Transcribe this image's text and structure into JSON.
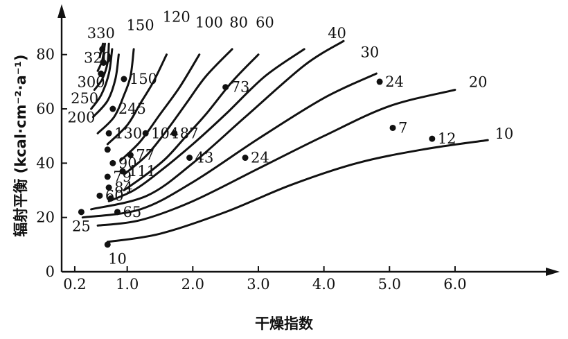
{
  "chart_data": {
    "type": "line",
    "xlabel": "干燥指数",
    "ylabel": "辐射平衡 (kcal·cm⁻²·a⁻¹)",
    "xlim": [
      0,
      7.3
    ],
    "ylim": [
      0,
      95
    ],
    "x_ticks": [
      {
        "v": 0.2,
        "label": "0.2"
      },
      {
        "v": 1.0,
        "label": "1.0"
      },
      {
        "v": 2.0,
        "label": "2.0"
      },
      {
        "v": 3.0,
        "label": "3.0"
      },
      {
        "v": 4.0,
        "label": "4.0"
      },
      {
        "v": 5.0,
        "label": "5.0"
      },
      {
        "v": 6.0,
        "label": "6.0"
      }
    ],
    "y_ticks": [
      {
        "v": 0,
        "label": "0"
      },
      {
        "v": 20,
        "label": "20"
      },
      {
        "v": 40,
        "label": "40"
      },
      {
        "v": 60,
        "label": "60"
      },
      {
        "v": 80,
        "label": "80"
      }
    ],
    "isolines": [
      {
        "label": "10",
        "points": [
          [
            0.7,
            11
          ],
          [
            1.5,
            14
          ],
          [
            2.5,
            22
          ],
          [
            3.5,
            32
          ],
          [
            4.5,
            40
          ],
          [
            5.5,
            45
          ],
          [
            6.5,
            48.5
          ]
        ]
      },
      {
        "label": "20",
        "points": [
          [
            0.55,
            17
          ],
          [
            1.2,
            19
          ],
          [
            2,
            26
          ],
          [
            3,
            38
          ],
          [
            4,
            50
          ],
          [
            5,
            61
          ],
          [
            6,
            67
          ]
        ]
      },
      {
        "label": "25",
        "points": [
          [
            0.32,
            20
          ],
          [
            1.2,
            23
          ],
          [
            2,
            33
          ],
          [
            3,
            49
          ],
          [
            4,
            64
          ],
          [
            4.8,
            73
          ]
        ]
      },
      {
        "label": "30",
        "points": [
          [
            0.45,
            23
          ],
          [
            1.3,
            28
          ],
          [
            2,
            40
          ],
          [
            2.8,
            57
          ],
          [
            3.7,
            76
          ],
          [
            4.3,
            85
          ]
        ]
      },
      {
        "label": "40",
        "points": [
          [
            0.72,
            26
          ],
          [
            1.1,
            30
          ],
          [
            1.5,
            37
          ],
          [
            2,
            47
          ],
          [
            2.5,
            58
          ],
          [
            3.1,
            72
          ],
          [
            3.7,
            82
          ]
        ]
      },
      {
        "label": "60",
        "points": [
          [
            0.95,
            30
          ],
          [
            1.3,
            36
          ],
          [
            1.6,
            42
          ],
          [
            1.9,
            50
          ],
          [
            2.2,
            58
          ],
          [
            2.6,
            70
          ],
          [
            3.0,
            80
          ]
        ]
      },
      {
        "label": "80",
        "points": [
          [
            0.96,
            36
          ],
          [
            1.3,
            43
          ],
          [
            1.6,
            52
          ],
          [
            1.9,
            62
          ],
          [
            2.2,
            72
          ],
          [
            2.6,
            82
          ]
        ]
      },
      {
        "label": "100",
        "points": [
          [
            0.9,
            41
          ],
          [
            1.2,
            48
          ],
          [
            1.5,
            58
          ],
          [
            1.8,
            68
          ],
          [
            2.1,
            80
          ]
        ]
      },
      {
        "label": "120",
        "points": [
          [
            0.7,
            47
          ],
          [
            1.0,
            54
          ],
          [
            1.2,
            62
          ],
          [
            1.4,
            70
          ],
          [
            1.6,
            80
          ]
        ]
      },
      {
        "label": "150",
        "points": [
          [
            0.55,
            51
          ],
          [
            0.8,
            57
          ],
          [
            0.95,
            65
          ],
          [
            1.05,
            72
          ],
          [
            1.1,
            82
          ]
        ]
      },
      {
        "label": "200",
        "points": [
          [
            0.48,
            57
          ],
          [
            0.7,
            63
          ],
          [
            0.82,
            71
          ],
          [
            0.87,
            80
          ]
        ]
      },
      {
        "label": "250",
        "points": [
          [
            0.45,
            60
          ],
          [
            0.6,
            65
          ],
          [
            0.72,
            73
          ],
          [
            0.77,
            82
          ]
        ]
      },
      {
        "label": "300",
        "points": [
          [
            0.5,
            67
          ],
          [
            0.62,
            71
          ],
          [
            0.7,
            77
          ],
          [
            0.72,
            84
          ]
        ]
      },
      {
        "label": "320",
        "points": [
          [
            0.55,
            74
          ],
          [
            0.62,
            78
          ],
          [
            0.66,
            84
          ]
        ]
      },
      {
        "label": "330",
        "points": [
          [
            0.58,
            79
          ],
          [
            0.63,
            84
          ]
        ]
      }
    ],
    "isoline_tags": [
      {
        "text": "10",
        "x": 6.75,
        "y": 49
      },
      {
        "text": "20",
        "x": 6.35,
        "y": 68
      },
      {
        "text": "30",
        "x": 4.7,
        "y": 79
      },
      {
        "text": "40",
        "x": 4.2,
        "y": 86
      },
      {
        "text": "60",
        "x": 3.1,
        "y": 90
      },
      {
        "text": "80",
        "x": 2.7,
        "y": 90
      },
      {
        "text": "100",
        "x": 2.25,
        "y": 90
      },
      {
        "text": "120",
        "x": 1.75,
        "y": 92
      },
      {
        "text": "150",
        "x": 1.2,
        "y": 89
      },
      {
        "text": "330",
        "x": 0.6,
        "y": 86
      },
      {
        "text": "320",
        "x": 0.55,
        "y": 77
      },
      {
        "text": "300",
        "x": 0.45,
        "y": 68
      },
      {
        "text": "250",
        "x": 0.35,
        "y": 62
      },
      {
        "text": "200",
        "x": 0.3,
        "y": 55
      },
      {
        "text": "25",
        "x": 0.3,
        "y": 15
      },
      {
        "text": "10",
        "x": 0.85,
        "y": 3
      }
    ],
    "stations": [
      {
        "x": 0.62,
        "y": 82,
        "label": ""
      },
      {
        "x": 0.64,
        "y": 77,
        "label": ""
      },
      {
        "x": 0.6,
        "y": 73,
        "label": ""
      },
      {
        "x": 0.95,
        "y": 71,
        "label": "150"
      },
      {
        "x": 0.78,
        "y": 60,
        "label": "245"
      },
      {
        "x": 0.72,
        "y": 51,
        "label": "130"
      },
      {
        "x": 1.28,
        "y": 51,
        "label": "104"
      },
      {
        "x": 1.72,
        "y": 51,
        "label": "87"
      },
      {
        "x": 0.7,
        "y": 45,
        "label": ""
      },
      {
        "x": 1.05,
        "y": 43,
        "label": "77"
      },
      {
        "x": 0.78,
        "y": 40,
        "label": "90"
      },
      {
        "x": 0.93,
        "y": 37,
        "label": "111"
      },
      {
        "x": 0.7,
        "y": 35,
        "label": "79"
      },
      {
        "x": 0.72,
        "y": 31,
        "label": "84"
      },
      {
        "x": 0.58,
        "y": 28,
        "label": "60"
      },
      {
        "x": 0.75,
        "y": 27,
        "label": ""
      },
      {
        "x": 1.95,
        "y": 42,
        "label": "43"
      },
      {
        "x": 2.5,
        "y": 68,
        "label": "73"
      },
      {
        "x": 2.8,
        "y": 42,
        "label": "24"
      },
      {
        "x": 4.85,
        "y": 70,
        "label": "24"
      },
      {
        "x": 5.05,
        "y": 53,
        "label": "7"
      },
      {
        "x": 5.65,
        "y": 49,
        "label": "12"
      },
      {
        "x": 0.3,
        "y": 22,
        "label": ""
      },
      {
        "x": 0.7,
        "y": 10,
        "label": ""
      },
      {
        "x": 0.85,
        "y": 22,
        "label": "65"
      }
    ]
  }
}
